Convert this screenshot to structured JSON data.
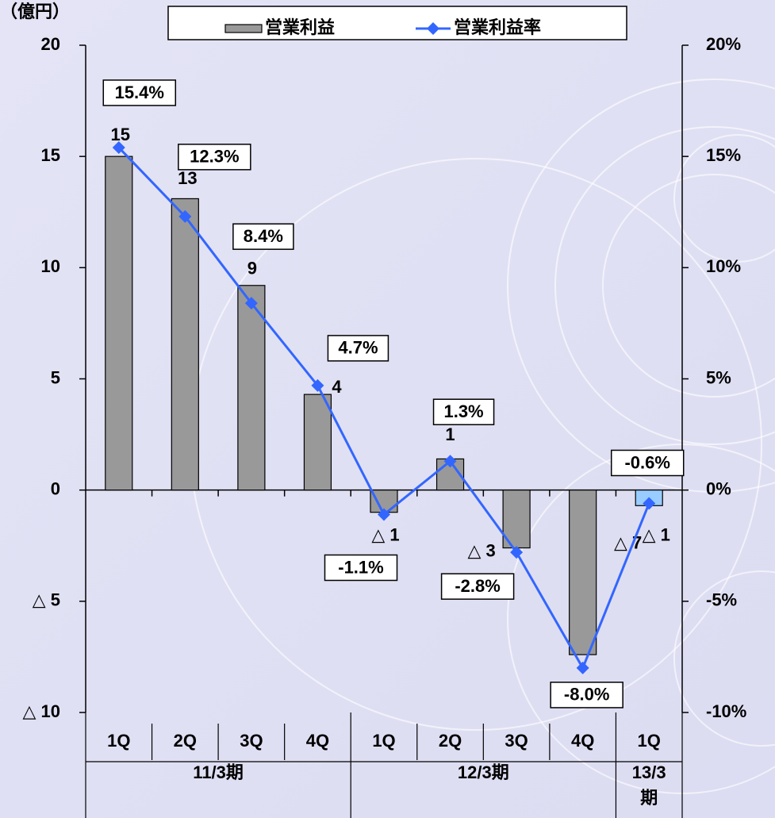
{
  "chart_data": {
    "type": "bar",
    "unit_label": "（億円）",
    "categories": [
      "1Q",
      "2Q",
      "3Q",
      "4Q",
      "1Q",
      "2Q",
      "3Q",
      "4Q",
      "1Q"
    ],
    "groups": [
      {
        "name": "11/3期",
        "count": 4
      },
      {
        "name": "12/3期",
        "count": 4
      },
      {
        "name": "13/3期",
        "count": 1
      }
    ],
    "series": [
      {
        "name": "営業利益",
        "type": "bar",
        "color": "#999999",
        "colors": [
          "#999999",
          "#999999",
          "#999999",
          "#999999",
          "#999999",
          "#999999",
          "#999999",
          "#999999",
          "#99ccff"
        ],
        "values": [
          15,
          13.1,
          9.2,
          4.3,
          -1.0,
          1.4,
          -2.6,
          -7.4,
          -0.7
        ],
        "value_labels": [
          "15",
          "13",
          "9",
          "4",
          "△ 1",
          "1",
          "△ 3",
          "△ 7",
          "△ 1"
        ]
      },
      {
        "name": "営業利益率",
        "type": "line",
        "axis": "y2",
        "color": "#3366ff",
        "values": [
          15.4,
          12.3,
          8.4,
          4.7,
          -1.1,
          1.3,
          -2.8,
          -8.0,
          -0.6
        ],
        "value_labels": [
          "15.4%",
          "12.3%",
          "8.4%",
          "4.7%",
          "-1.1%",
          "1.3%",
          "-2.8%",
          "-8.0%",
          "-0.6%"
        ]
      }
    ],
    "ylim": [
      -10,
      20
    ],
    "yticks": [
      20,
      15,
      10,
      5,
      0,
      {
        "value": -5,
        "label": "△ 5"
      },
      {
        "value": -10,
        "label": "△ 10"
      }
    ],
    "y2lim": [
      -10,
      20
    ],
    "y2ticks": [
      {
        "value": 20,
        "label": "20%"
      },
      {
        "value": 15,
        "label": "15%"
      },
      {
        "value": 10,
        "label": "10%"
      },
      {
        "value": 5,
        "label": "5%"
      },
      {
        "value": 0,
        "label": "0%"
      },
      {
        "value": -5,
        "label": "-5%"
      },
      {
        "value": -10,
        "label": "-10%"
      }
    ]
  }
}
